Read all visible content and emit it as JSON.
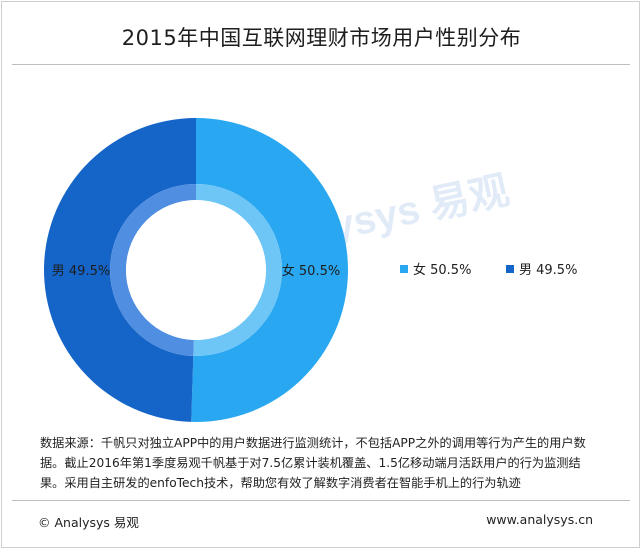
{
  "title": "2015年中国互联网理财市场用户性别分布",
  "chart_data": {
    "type": "pie",
    "donut": true,
    "categories": [
      "女",
      "男"
    ],
    "values": [
      50.5,
      49.5
    ],
    "unit": "%",
    "data_labels": [
      "女  50.5%",
      "男  49.5%"
    ],
    "legend": {
      "placement": "right",
      "entries": [
        "女  50.5%",
        "男  49.5%"
      ]
    },
    "colors": [
      "#29a7f0",
      "#1565c8"
    ],
    "inner_highlight_colors": [
      "#6ec6f7",
      "#4f8ee0"
    ]
  },
  "watermark": "Analysys 易观",
  "note": "数据来源：千帆只对独立APP中的用户数据进行监测统计，不包括APP之外的调用等行为产生的用户数据。截止2016年第1季度易观千帆基于对7.5亿累计装机覆盖、1.5亿移动端月活跃用户的行为监测结果。采用自主研发的enfoTech技术，帮助您有效了解数字消费者在智能手机上的行为轨迹",
  "footer": {
    "copyright": "© Analysys 易观",
    "url": "www.analysys.cn"
  }
}
